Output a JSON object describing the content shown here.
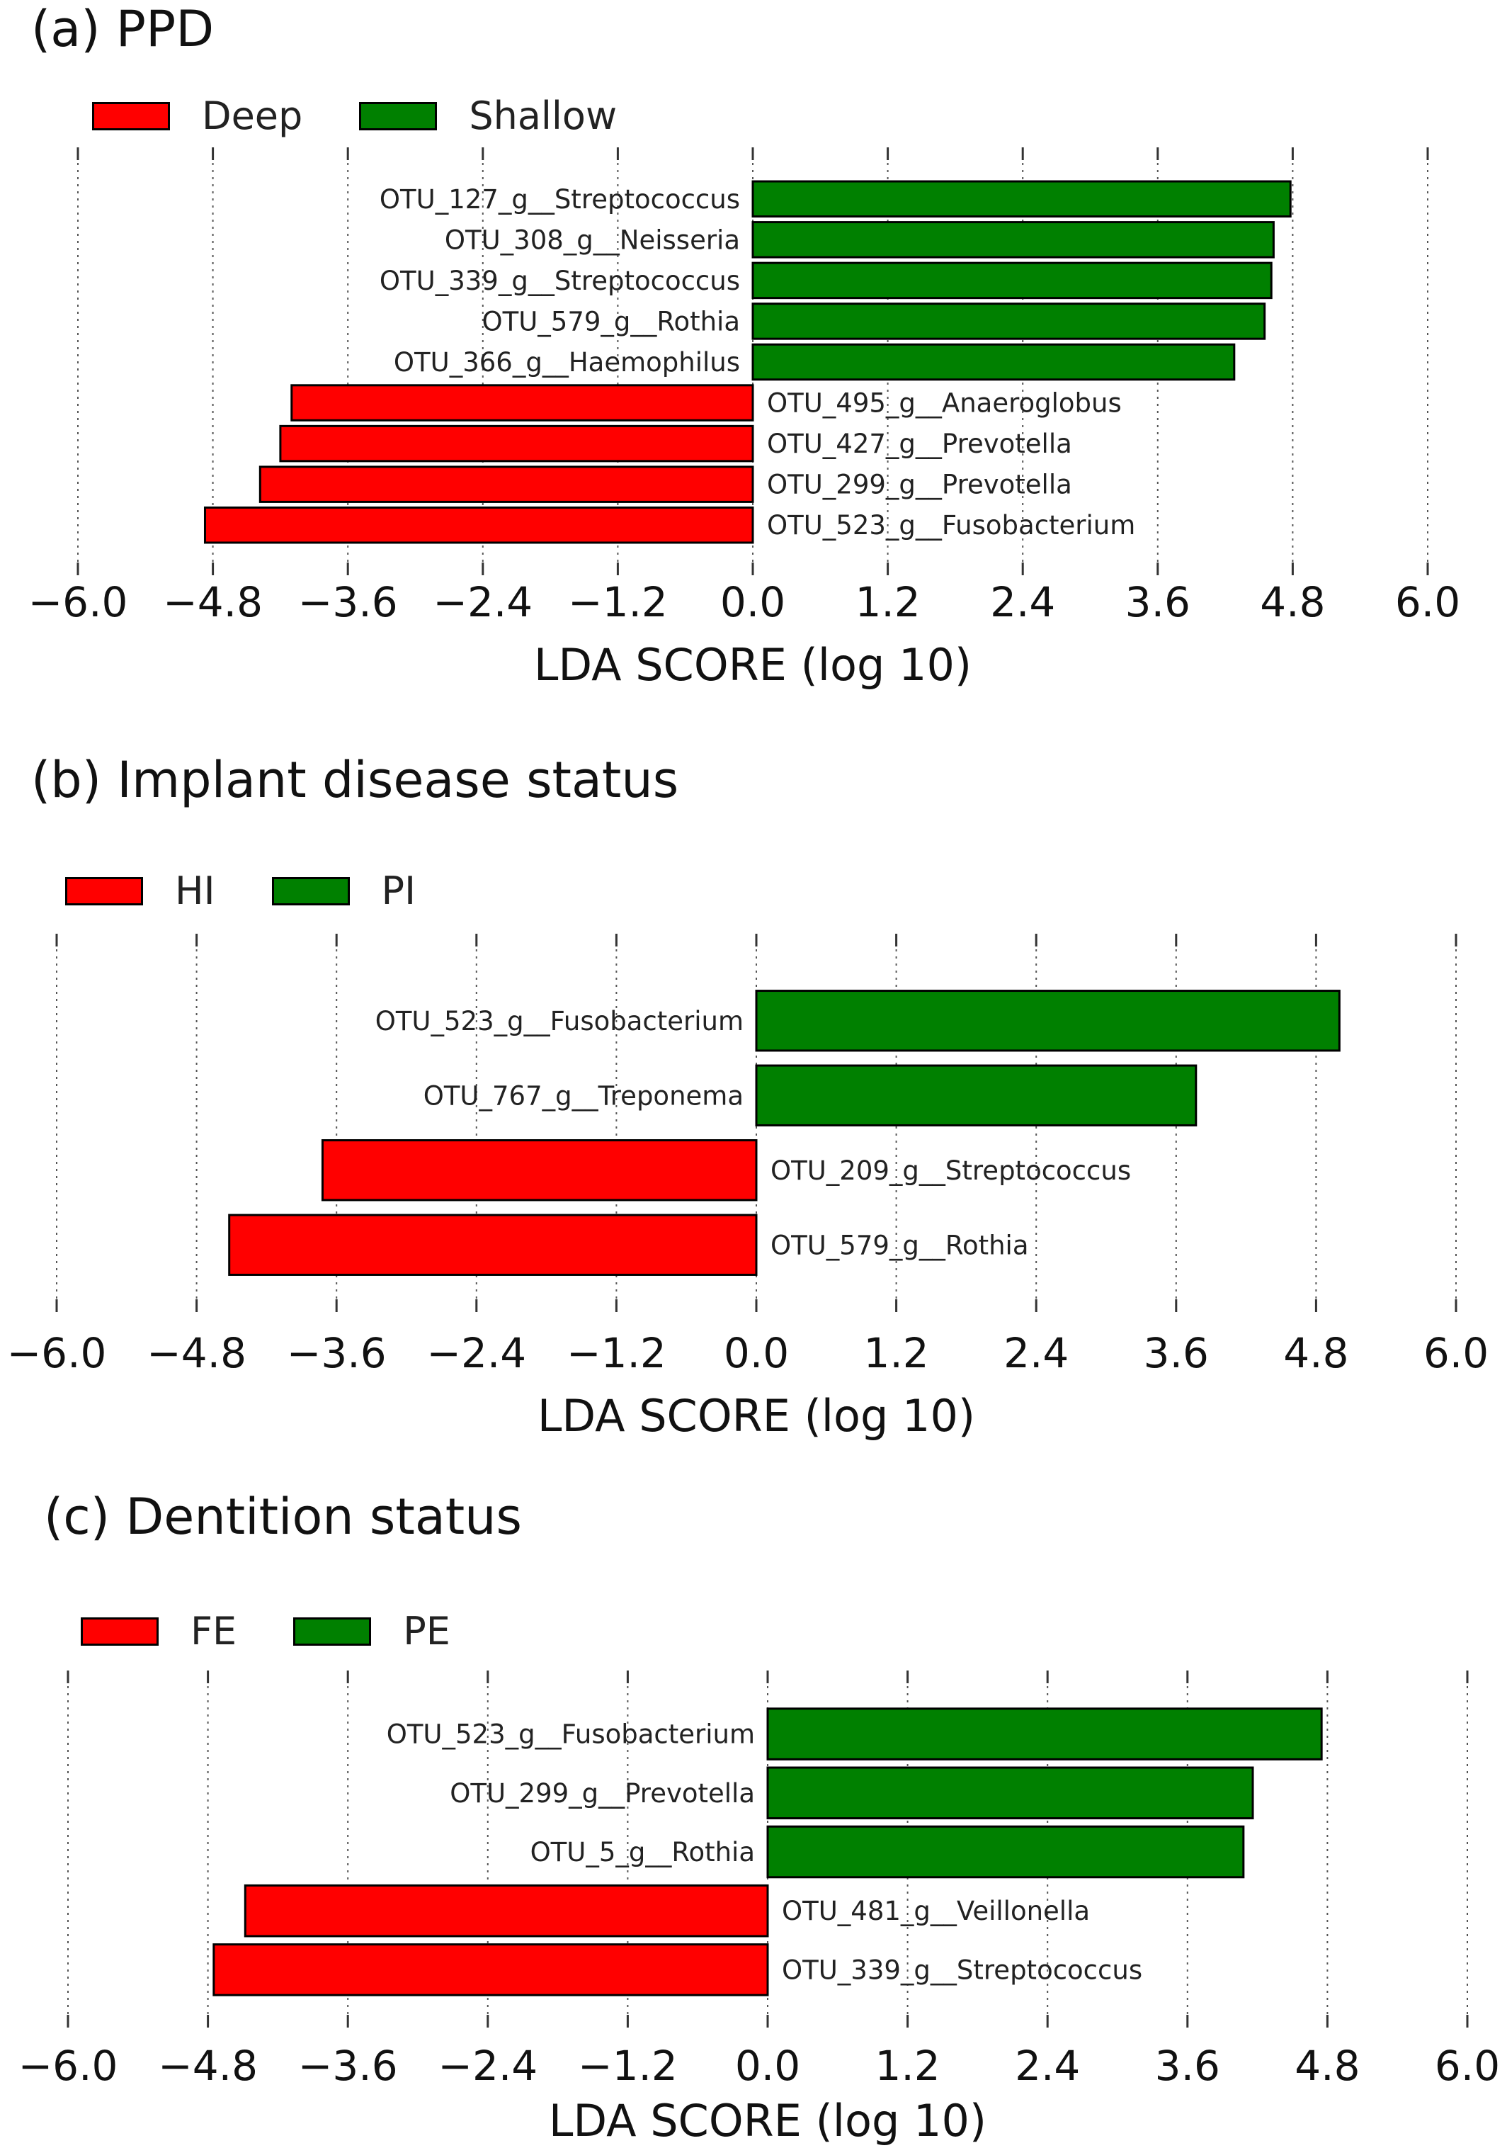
{
  "chart_data": [
    {
      "type": "bar",
      "orientation": "horizontal",
      "title": "(a) PPD",
      "xlabel": "LDA SCORE (log 10)",
      "xlim": [
        -6.0,
        6.0
      ],
      "xticks": [
        "−6.0",
        "−4.8",
        "−3.6",
        "−2.4",
        "−1.2",
        "0.0",
        "1.2",
        "2.4",
        "3.6",
        "4.8",
        "6.0"
      ],
      "grid": true,
      "legend_position": "top-left",
      "legend": [
        {
          "name": "Deep",
          "color": "#ff0000"
        },
        {
          "name": "Shallow",
          "color": "#008000"
        }
      ],
      "bars": [
        {
          "label": "OTU_127_g__Streptococcus",
          "value": 4.78,
          "group": "Shallow"
        },
        {
          "label": "OTU_308_g__Neisseria",
          "value": 4.63,
          "group": "Shallow"
        },
        {
          "label": "OTU_339_g__Streptococcus",
          "value": 4.61,
          "group": "Shallow"
        },
        {
          "label": "OTU_579_g__Rothia",
          "value": 4.55,
          "group": "Shallow"
        },
        {
          "label": "OTU_366_g__Haemophilus",
          "value": 4.28,
          "group": "Shallow"
        },
        {
          "label": "OTU_495_g__Anaeroglobus",
          "value": -4.1,
          "group": "Deep"
        },
        {
          "label": "OTU_427_g__Prevotella",
          "value": -4.2,
          "group": "Deep"
        },
        {
          "label": "OTU_299_g__Prevotella",
          "value": -4.38,
          "group": "Deep"
        },
        {
          "label": "OTU_523_g__Fusobacterium",
          "value": -4.87,
          "group": "Deep"
        }
      ]
    },
    {
      "type": "bar",
      "orientation": "horizontal",
      "title": "(b) Implant disease status",
      "xlabel": "LDA SCORE (log 10)",
      "xlim": [
        -6.0,
        6.0
      ],
      "xticks": [
        "−6.0",
        "−4.8",
        "−3.6",
        "−2.4",
        "−1.2",
        "0.0",
        "1.2",
        "2.4",
        "3.6",
        "4.8",
        "6.0"
      ],
      "grid": true,
      "legend_position": "top-left",
      "legend": [
        {
          "name": "HI",
          "color": "#ff0000"
        },
        {
          "name": "PI",
          "color": "#008000"
        }
      ],
      "bars": [
        {
          "label": "OTU_523_g__Fusobacterium",
          "value": 5.0,
          "group": "PI"
        },
        {
          "label": "OTU_767_g__Treponema",
          "value": 3.77,
          "group": "PI"
        },
        {
          "label": "OTU_209_g__Streptococcus",
          "value": -3.72,
          "group": "HI"
        },
        {
          "label": "OTU_579_g__Rothia",
          "value": -4.52,
          "group": "HI"
        }
      ]
    },
    {
      "type": "bar",
      "orientation": "horizontal",
      "title": "(c) Dentition status",
      "xlabel": "LDA SCORE (log 10)",
      "xlim": [
        -6.0,
        6.0
      ],
      "xticks": [
        "−6.0",
        "−4.8",
        "−3.6",
        "−2.4",
        "−1.2",
        "0.0",
        "1.2",
        "2.4",
        "3.6",
        "4.8",
        "6.0"
      ],
      "grid": true,
      "legend_position": "top-left",
      "legend": [
        {
          "name": "FE",
          "color": "#ff0000"
        },
        {
          "name": "PE",
          "color": "#008000"
        }
      ],
      "bars": [
        {
          "label": "OTU_523_g__Fusobacterium",
          "value": 4.75,
          "group": "PE"
        },
        {
          "label": "OTU_299_g__Prevotella",
          "value": 4.16,
          "group": "PE"
        },
        {
          "label": "OTU_5_g__Rothia",
          "value": 4.08,
          "group": "PE"
        },
        {
          "label": "OTU_481_g__Veillonella",
          "value": -4.48,
          "group": "FE"
        },
        {
          "label": "OTU_339_g__Streptococcus",
          "value": -4.75,
          "group": "FE"
        }
      ]
    }
  ]
}
